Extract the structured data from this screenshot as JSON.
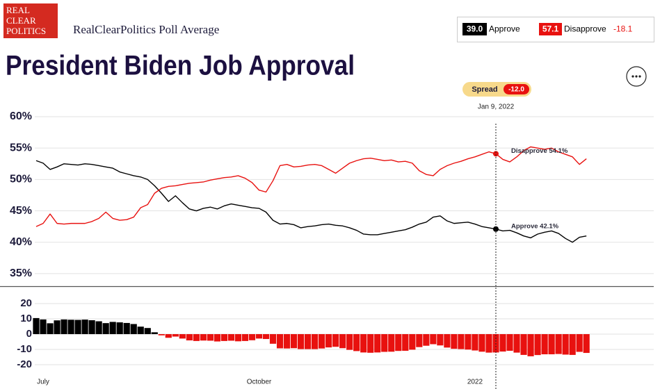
{
  "header": {
    "logo": [
      "REAL",
      "CLEAR",
      "POLITICS"
    ],
    "source": "RealClearPolitics Poll Average",
    "approve_value": "39.0",
    "disapprove_value": "57.1",
    "net_value": "-18.1",
    "title": "President Biden Job Approval",
    "spread_label": "Spread",
    "spread_value": "-12.0",
    "hover_date": "Jan 9, 2022"
  },
  "chart_data": [
    {
      "type": "line",
      "ylim": [
        33,
        60
      ],
      "yticks": [
        {
          "value": 60,
          "label": "60%"
        },
        {
          "value": 55,
          "label": "55%"
        },
        {
          "value": 50,
          "label": "50%"
        },
        {
          "value": 45,
          "label": "45%"
        },
        {
          "value": 40,
          "label": "40%"
        },
        {
          "value": 35,
          "label": "35%"
        }
      ],
      "grid": true,
      "annotations": [
        "Approve 42.1%",
        "Disapprove 54.1%"
      ],
      "series": [
        {
          "name": "Approve",
          "color": "#000000",
          "values": [
            53.0,
            52.6,
            51.6,
            52.0,
            52.5,
            52.4,
            52.3,
            52.5,
            52.4,
            52.2,
            52.0,
            51.8,
            51.2,
            50.9,
            50.6,
            50.4,
            50.0,
            49.0,
            47.8,
            46.5,
            47.4,
            46.3,
            45.3,
            45.0,
            45.4,
            45.6,
            45.3,
            45.8,
            46.1,
            45.9,
            45.7,
            45.5,
            45.4,
            44.8,
            43.5,
            42.9,
            43.0,
            42.8,
            42.3,
            42.5,
            42.6,
            42.8,
            42.9,
            42.7,
            42.6,
            42.3,
            41.9,
            41.3,
            41.2,
            41.2,
            41.4,
            41.6,
            41.8,
            42.0,
            42.4,
            42.9,
            43.2,
            44.0,
            44.2,
            43.4,
            43.0,
            43.1,
            43.2,
            42.9,
            42.5,
            42.3,
            42.1,
            41.8,
            41.9,
            41.5,
            41.0,
            40.7,
            41.3,
            41.6,
            41.8,
            41.4,
            40.6,
            40.0,
            40.8,
            41.0
          ]
        },
        {
          "name": "Disapprove",
          "color": "#e8110f",
          "values": [
            42.5,
            43.0,
            44.5,
            43.0,
            42.9,
            43.0,
            43.0,
            43.0,
            43.3,
            43.8,
            44.8,
            43.8,
            43.5,
            43.6,
            44.0,
            45.5,
            46.0,
            47.8,
            48.6,
            48.9,
            49.0,
            49.2,
            49.4,
            49.5,
            49.6,
            49.9,
            50.1,
            50.3,
            50.4,
            50.6,
            50.2,
            49.5,
            48.3,
            48.0,
            49.8,
            52.2,
            52.4,
            52.0,
            52.1,
            52.3,
            52.4,
            52.2,
            51.6,
            51.0,
            51.8,
            52.6,
            53.0,
            53.3,
            53.4,
            53.2,
            53.0,
            53.1,
            52.8,
            52.9,
            52.6,
            51.4,
            50.8,
            50.6,
            51.6,
            52.2,
            52.6,
            52.9,
            53.3,
            53.6,
            54.0,
            54.4,
            54.1,
            53.2,
            52.8,
            53.6,
            54.6,
            55.2,
            55.0,
            54.8,
            55.0,
            54.4,
            54.0,
            53.6,
            52.4,
            53.3
          ]
        }
      ]
    },
    {
      "type": "bar",
      "ylim": [
        -25,
        25
      ],
      "yticks": [
        20,
        10,
        0,
        -10,
        -20
      ],
      "grid": true,
      "colors": {
        "positive": "#000000",
        "negative": "#e8110f"
      },
      "categories": [
        null,
        "July",
        null,
        null,
        null,
        null,
        null,
        null,
        null,
        null,
        null,
        null,
        null,
        null,
        null,
        null,
        null,
        null,
        null,
        null,
        null,
        null,
        null,
        null,
        null,
        null,
        null,
        null,
        null,
        null,
        null,
        null,
        "October",
        null,
        null,
        null,
        null,
        null,
        null,
        null,
        null,
        null,
        null,
        null,
        null,
        null,
        null,
        null,
        null,
        null,
        null,
        null,
        null,
        null,
        null,
        null,
        null,
        null,
        null,
        null,
        null,
        null,
        null,
        "2022",
        null,
        null,
        null,
        null,
        null,
        null,
        null,
        null,
        null,
        null,
        null,
        null,
        null,
        null,
        null,
        null
      ],
      "values": [
        10.5,
        9.6,
        7.1,
        9.0,
        9.6,
        9.4,
        9.3,
        9.5,
        9.1,
        8.4,
        7.2,
        8.0,
        7.7,
        7.3,
        6.6,
        4.9,
        4.0,
        1.2,
        -0.8,
        -2.4,
        -1.6,
        -2.9,
        -4.1,
        -4.5,
        -4.2,
        -4.3,
        -4.8,
        -4.5,
        -4.3,
        -4.7,
        -4.5,
        -4.0,
        -2.9,
        -3.2,
        -6.3,
        -9.3,
        -9.4,
        -9.2,
        -9.8,
        -9.8,
        -9.8,
        -9.4,
        -8.7,
        -8.3,
        -9.2,
        -10.3,
        -11.1,
        -12.0,
        -12.2,
        -12.0,
        -11.6,
        -11.5,
        -11.0,
        -10.9,
        -10.2,
        -8.5,
        -7.6,
        -6.6,
        -7.4,
        -8.8,
        -9.6,
        -9.8,
        -10.1,
        -10.7,
        -11.5,
        -12.1,
        -12.0,
        -11.4,
        -10.9,
        -12.1,
        -13.6,
        -14.5,
        -13.7,
        -13.2,
        -13.2,
        -13.0,
        -13.4,
        -13.6,
        -11.6,
        -12.3
      ]
    }
  ]
}
